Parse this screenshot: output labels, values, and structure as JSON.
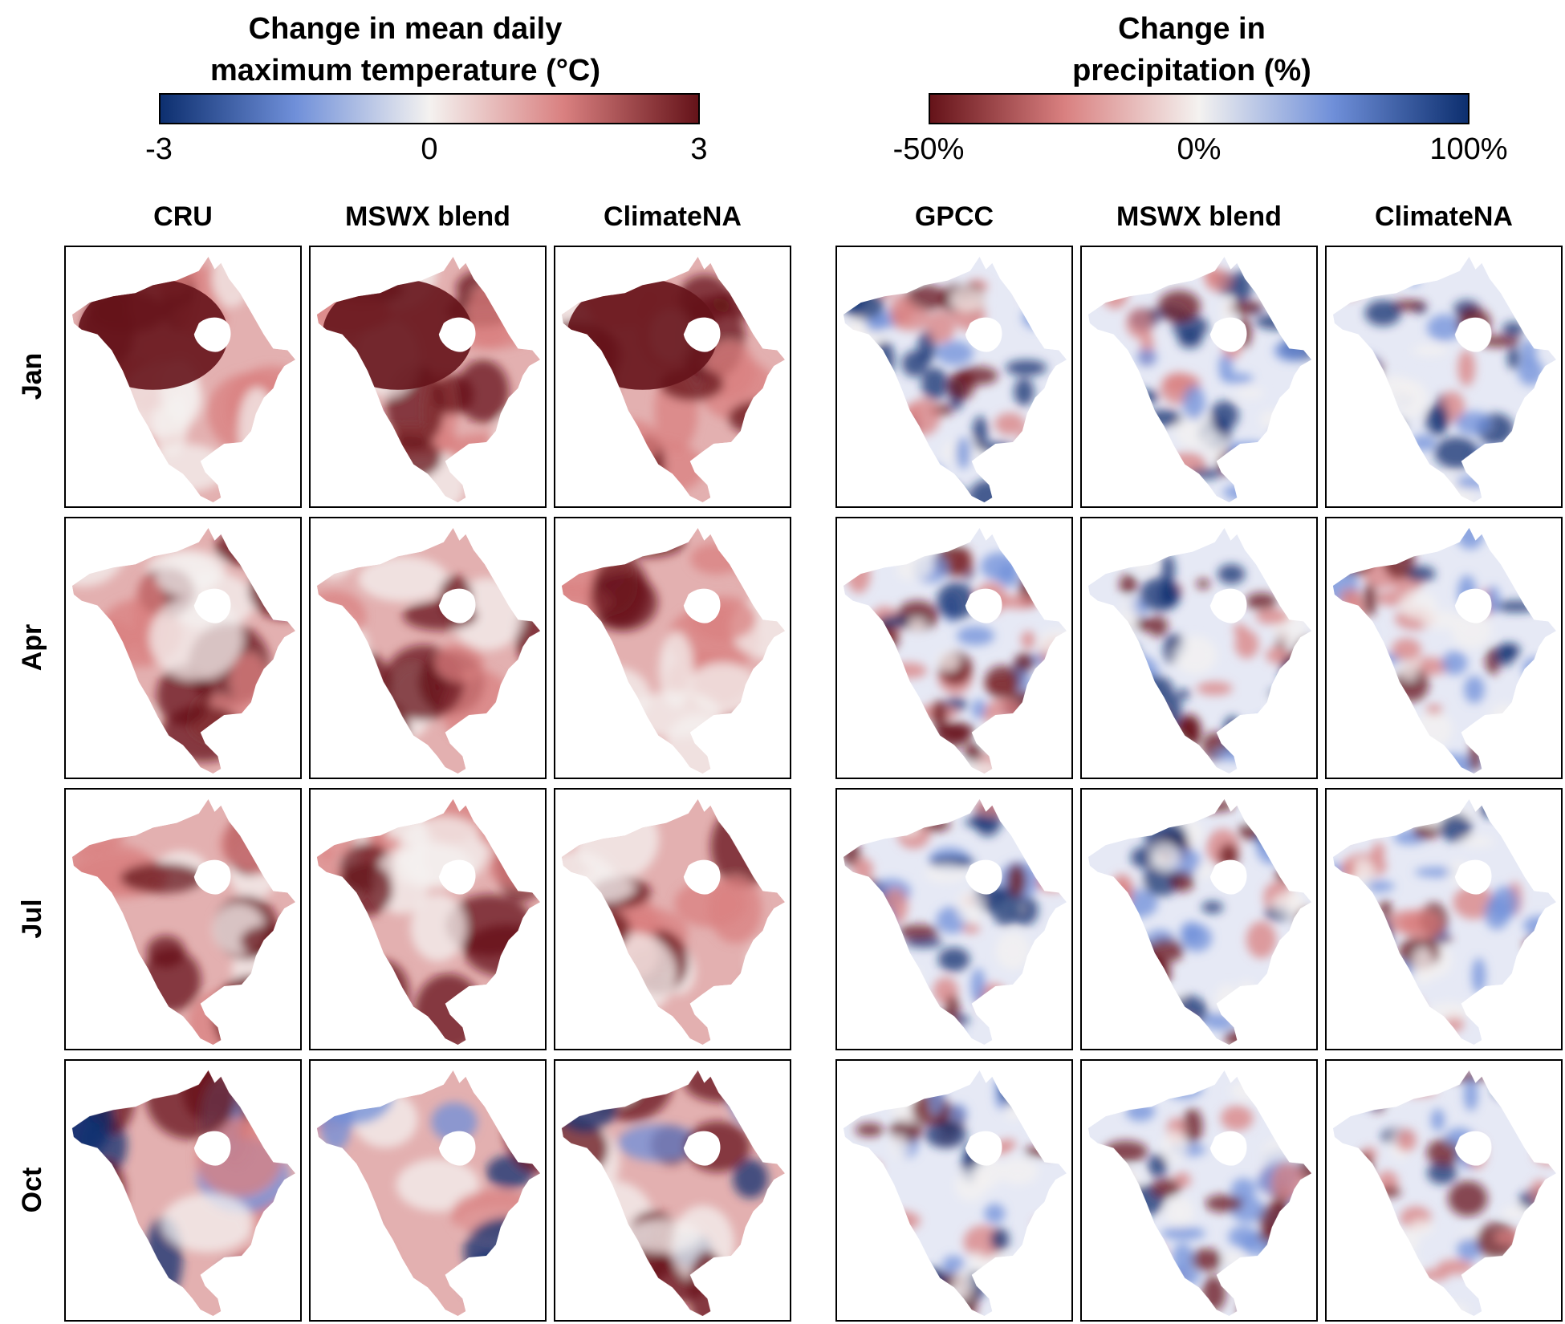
{
  "legends": {
    "temperature": {
      "title_line1": "Change in mean daily",
      "title_line2": "maximum temperature (°C)",
      "ticks": [
        "-3",
        "0",
        "3"
      ],
      "scale": [
        "#0d2f6f",
        "#6f8fd9",
        "#f4f2f0",
        "#d98080",
        "#651319"
      ]
    },
    "precipitation": {
      "title_line1": "Change in",
      "title_line2": "precipitation (%)",
      "ticks": [
        "-50%",
        "0%",
        "100%"
      ],
      "scale": [
        "#651319",
        "#d98080",
        "#f4f2f0",
        "#6f8fd9",
        "#0d2f6f"
      ]
    }
  },
  "temperature_columns": [
    "CRU",
    "MSWX blend",
    "ClimateNA"
  ],
  "precipitation_columns": [
    "GPCC",
    "MSWX blend",
    "ClimateNA"
  ],
  "rows": [
    "Jan",
    "Apr",
    "Jul",
    "Oct"
  ]
}
